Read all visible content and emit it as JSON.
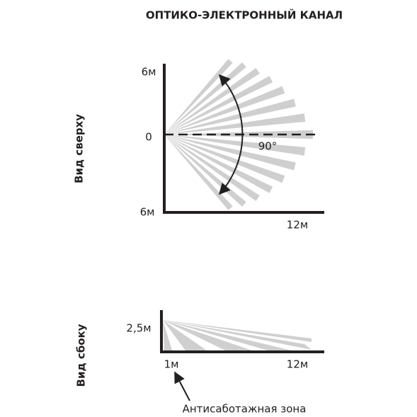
{
  "title": "ОПТИКО-ЭЛЕКТРОННЫЙ КАНАЛ",
  "top_view": {
    "label": "Вид сверху",
    "y_top": "6м",
    "y_zero": "0",
    "y_bottom": "6м",
    "x_end": "12м",
    "angle": "90°"
  },
  "side_view": {
    "label": "Вид сбоку",
    "height": "2,5м",
    "x_start": "1м",
    "x_end": "12м",
    "note": "Антисаботажная зона"
  }
}
